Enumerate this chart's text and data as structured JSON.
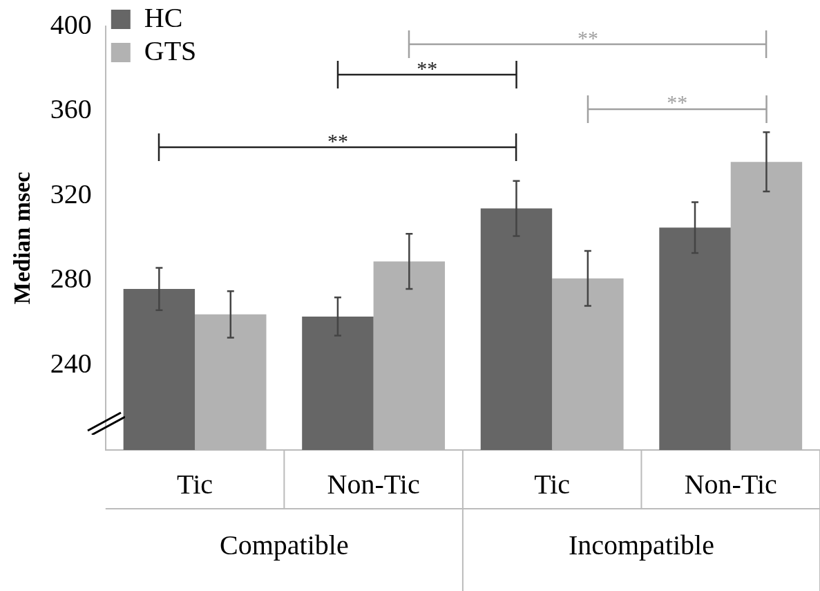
{
  "chart_data": {
    "type": "bar",
    "ylabel": "Median msec",
    "categories": [
      "Tic",
      "Non-Tic",
      "Tic",
      "Non-Tic"
    ],
    "series": [
      {
        "name": "HC",
        "color": "#666666",
        "values": [
          276,
          263,
          314,
          305
        ],
        "errors": [
          10,
          9,
          13,
          12
        ]
      },
      {
        "name": "GTS",
        "color": "#b2b2b2",
        "values": [
          264,
          289,
          281,
          336
        ],
        "errors": [
          11,
          13,
          13,
          14
        ]
      }
    ],
    "ylim": [
      200,
      400
    ],
    "yticks": [
      240,
      280,
      320,
      360,
      400
    ],
    "legend": "top left",
    "grid": false,
    "annotations": [
      "**",
      "**",
      "**",
      "**",
      "Compatible",
      "Incompatible"
    ]
  }
}
